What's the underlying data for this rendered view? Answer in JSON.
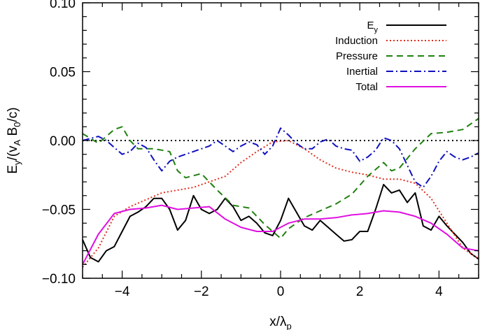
{
  "chart_data": {
    "type": "line",
    "title": "",
    "xlabel": "x/λ_p",
    "xlabel_parts": {
      "base": "x/λ",
      "sub": "p"
    },
    "ylabel": "E_y/(v_A B_0/c)",
    "ylabel_parts": {
      "p1": "E",
      "s1": "y",
      "p2": "/(v",
      "s2": "A",
      "p3": " B",
      "s3": "0",
      "p4": "/c)"
    },
    "xlim": [
      -5,
      5
    ],
    "ylim": [
      -0.1,
      0.1
    ],
    "xticks": [
      -4,
      -2,
      0,
      2,
      4
    ],
    "xtick_labels": [
      "−4",
      "−2",
      "0",
      "2",
      "4"
    ],
    "yticks": [
      -0.1,
      -0.05,
      0.0,
      0.05,
      0.1
    ],
    "ytick_labels": [
      "−0.10",
      "−0.05",
      "0.00",
      "0.05",
      "0.10"
    ],
    "grid": false,
    "legend_position": "top-right",
    "legend": [
      {
        "label": "E",
        "sub": "y",
        "series": "Ey"
      },
      {
        "label": "Induction",
        "series": "Induction"
      },
      {
        "label": "Pressure",
        "series": "Pressure"
      },
      {
        "label": "Inertial",
        "series": "Inertial"
      },
      {
        "label": "Total",
        "series": "Total"
      }
    ],
    "reference_line": {
      "y": 0.0,
      "style": "dotted",
      "color": "#000000"
    },
    "series": [
      {
        "name": "Ey",
        "color": "#000000",
        "dash": "solid",
        "x": [
          -5.0,
          -4.8,
          -4.6,
          -4.4,
          -4.2,
          -4.0,
          -3.8,
          -3.6,
          -3.4,
          -3.2,
          -3.0,
          -2.8,
          -2.6,
          -2.4,
          -2.2,
          -2.0,
          -1.8,
          -1.6,
          -1.4,
          -1.2,
          -1.0,
          -0.8,
          -0.6,
          -0.4,
          -0.2,
          0.0,
          0.2,
          0.4,
          0.6,
          0.8,
          1.0,
          1.2,
          1.4,
          1.6,
          1.8,
          2.0,
          2.2,
          2.4,
          2.6,
          2.8,
          3.0,
          3.2,
          3.4,
          3.6,
          3.8,
          4.0,
          4.2,
          4.4,
          4.6,
          4.8,
          5.0
        ],
        "y": [
          -0.072,
          -0.085,
          -0.088,
          -0.08,
          -0.077,
          -0.066,
          -0.055,
          -0.052,
          -0.048,
          -0.042,
          -0.042,
          -0.05,
          -0.065,
          -0.058,
          -0.04,
          -0.05,
          -0.053,
          -0.05,
          -0.042,
          -0.048,
          -0.058,
          -0.055,
          -0.06,
          -0.067,
          -0.069,
          -0.058,
          -0.042,
          -0.052,
          -0.062,
          -0.065,
          -0.058,
          -0.063,
          -0.068,
          -0.073,
          -0.072,
          -0.066,
          -0.066,
          -0.05,
          -0.032,
          -0.038,
          -0.036,
          -0.045,
          -0.038,
          -0.062,
          -0.065,
          -0.055,
          -0.062,
          -0.068,
          -0.074,
          -0.082,
          -0.086
        ]
      },
      {
        "name": "Induction",
        "color": "#e03020",
        "dash": "dotted",
        "x": [
          -5.0,
          -4.6,
          -4.2,
          -3.8,
          -3.4,
          -3.0,
          -2.6,
          -2.2,
          -1.8,
          -1.4,
          -1.0,
          -0.6,
          -0.2,
          0.2,
          0.6,
          1.0,
          1.4,
          1.8,
          2.2,
          2.6,
          3.0,
          3.4,
          3.8,
          4.2,
          4.6,
          5.0
        ],
        "y": [
          -0.092,
          -0.078,
          -0.055,
          -0.048,
          -0.043,
          -0.038,
          -0.036,
          -0.034,
          -0.03,
          -0.026,
          -0.016,
          -0.008,
          -0.001,
          0.0,
          -0.006,
          -0.014,
          -0.02,
          -0.023,
          -0.025,
          -0.028,
          -0.028,
          -0.031,
          -0.042,
          -0.06,
          -0.078,
          -0.086
        ]
      },
      {
        "name": "Pressure",
        "color": "#208010",
        "dash": "dashed",
        "x": [
          -5.0,
          -4.6,
          -4.2,
          -4.0,
          -3.8,
          -3.6,
          -3.2,
          -2.8,
          -2.6,
          -2.4,
          -2.0,
          -1.6,
          -1.2,
          -0.8,
          -0.4,
          0.0,
          0.2,
          0.6,
          1.0,
          1.4,
          1.8,
          2.2,
          2.6,
          2.8,
          3.0,
          3.4,
          3.8,
          4.2,
          4.6,
          5.0
        ],
        "y": [
          0.005,
          -0.002,
          0.008,
          0.01,
          0.0,
          -0.006,
          -0.006,
          -0.008,
          -0.022,
          -0.027,
          -0.024,
          -0.036,
          -0.047,
          -0.049,
          -0.061,
          -0.071,
          -0.064,
          -0.056,
          -0.051,
          -0.046,
          -0.039,
          -0.026,
          -0.016,
          -0.022,
          -0.02,
          -0.006,
          0.005,
          0.006,
          0.008,
          0.016
        ]
      },
      {
        "name": "Inertial",
        "color": "#1010c0",
        "dash": "dashdot",
        "x": [
          -5.0,
          -4.6,
          -4.4,
          -4.2,
          -4.0,
          -3.8,
          -3.6,
          -3.4,
          -3.2,
          -3.0,
          -2.8,
          -2.6,
          -2.4,
          -2.2,
          -2.0,
          -1.8,
          -1.6,
          -1.4,
          -1.2,
          -1.0,
          -0.8,
          -0.6,
          -0.4,
          -0.2,
          0.0,
          0.2,
          0.4,
          0.6,
          0.8,
          1.0,
          1.2,
          1.4,
          1.6,
          1.8,
          2.0,
          2.2,
          2.4,
          2.6,
          2.8,
          3.0,
          3.2,
          3.4,
          3.6,
          3.8,
          4.0,
          4.2,
          4.4,
          4.6,
          4.8,
          5.0
        ],
        "y": [
          0.0,
          0.003,
          0.0,
          -0.005,
          -0.01,
          -0.008,
          -0.002,
          -0.005,
          -0.014,
          -0.022,
          -0.015,
          -0.012,
          -0.01,
          -0.008,
          -0.006,
          -0.004,
          0.0,
          -0.004,
          -0.008,
          -0.004,
          -0.001,
          -0.003,
          -0.01,
          -0.004,
          0.009,
          0.004,
          -0.002,
          -0.006,
          -0.006,
          -0.001,
          0.001,
          -0.004,
          -0.006,
          -0.007,
          -0.015,
          -0.012,
          -0.007,
          0.002,
          0.0,
          -0.006,
          -0.018,
          -0.03,
          -0.034,
          -0.026,
          -0.015,
          -0.008,
          -0.012,
          -0.014,
          -0.012,
          -0.009
        ]
      },
      {
        "name": "Total",
        "color": "#e010e0",
        "dash": "solid",
        "x": [
          -5.0,
          -4.6,
          -4.2,
          -3.8,
          -3.4,
          -3.0,
          -2.6,
          -2.2,
          -1.8,
          -1.4,
          -1.0,
          -0.6,
          -0.2,
          0.2,
          0.6,
          1.0,
          1.4,
          1.8,
          2.2,
          2.6,
          3.0,
          3.4,
          3.8,
          4.2,
          4.6,
          5.0
        ],
        "y": [
          -0.09,
          -0.068,
          -0.053,
          -0.05,
          -0.049,
          -0.047,
          -0.05,
          -0.049,
          -0.048,
          -0.057,
          -0.063,
          -0.066,
          -0.066,
          -0.06,
          -0.057,
          -0.057,
          -0.056,
          -0.054,
          -0.053,
          -0.051,
          -0.052,
          -0.055,
          -0.06,
          -0.068,
          -0.078,
          -0.08
        ]
      }
    ]
  }
}
